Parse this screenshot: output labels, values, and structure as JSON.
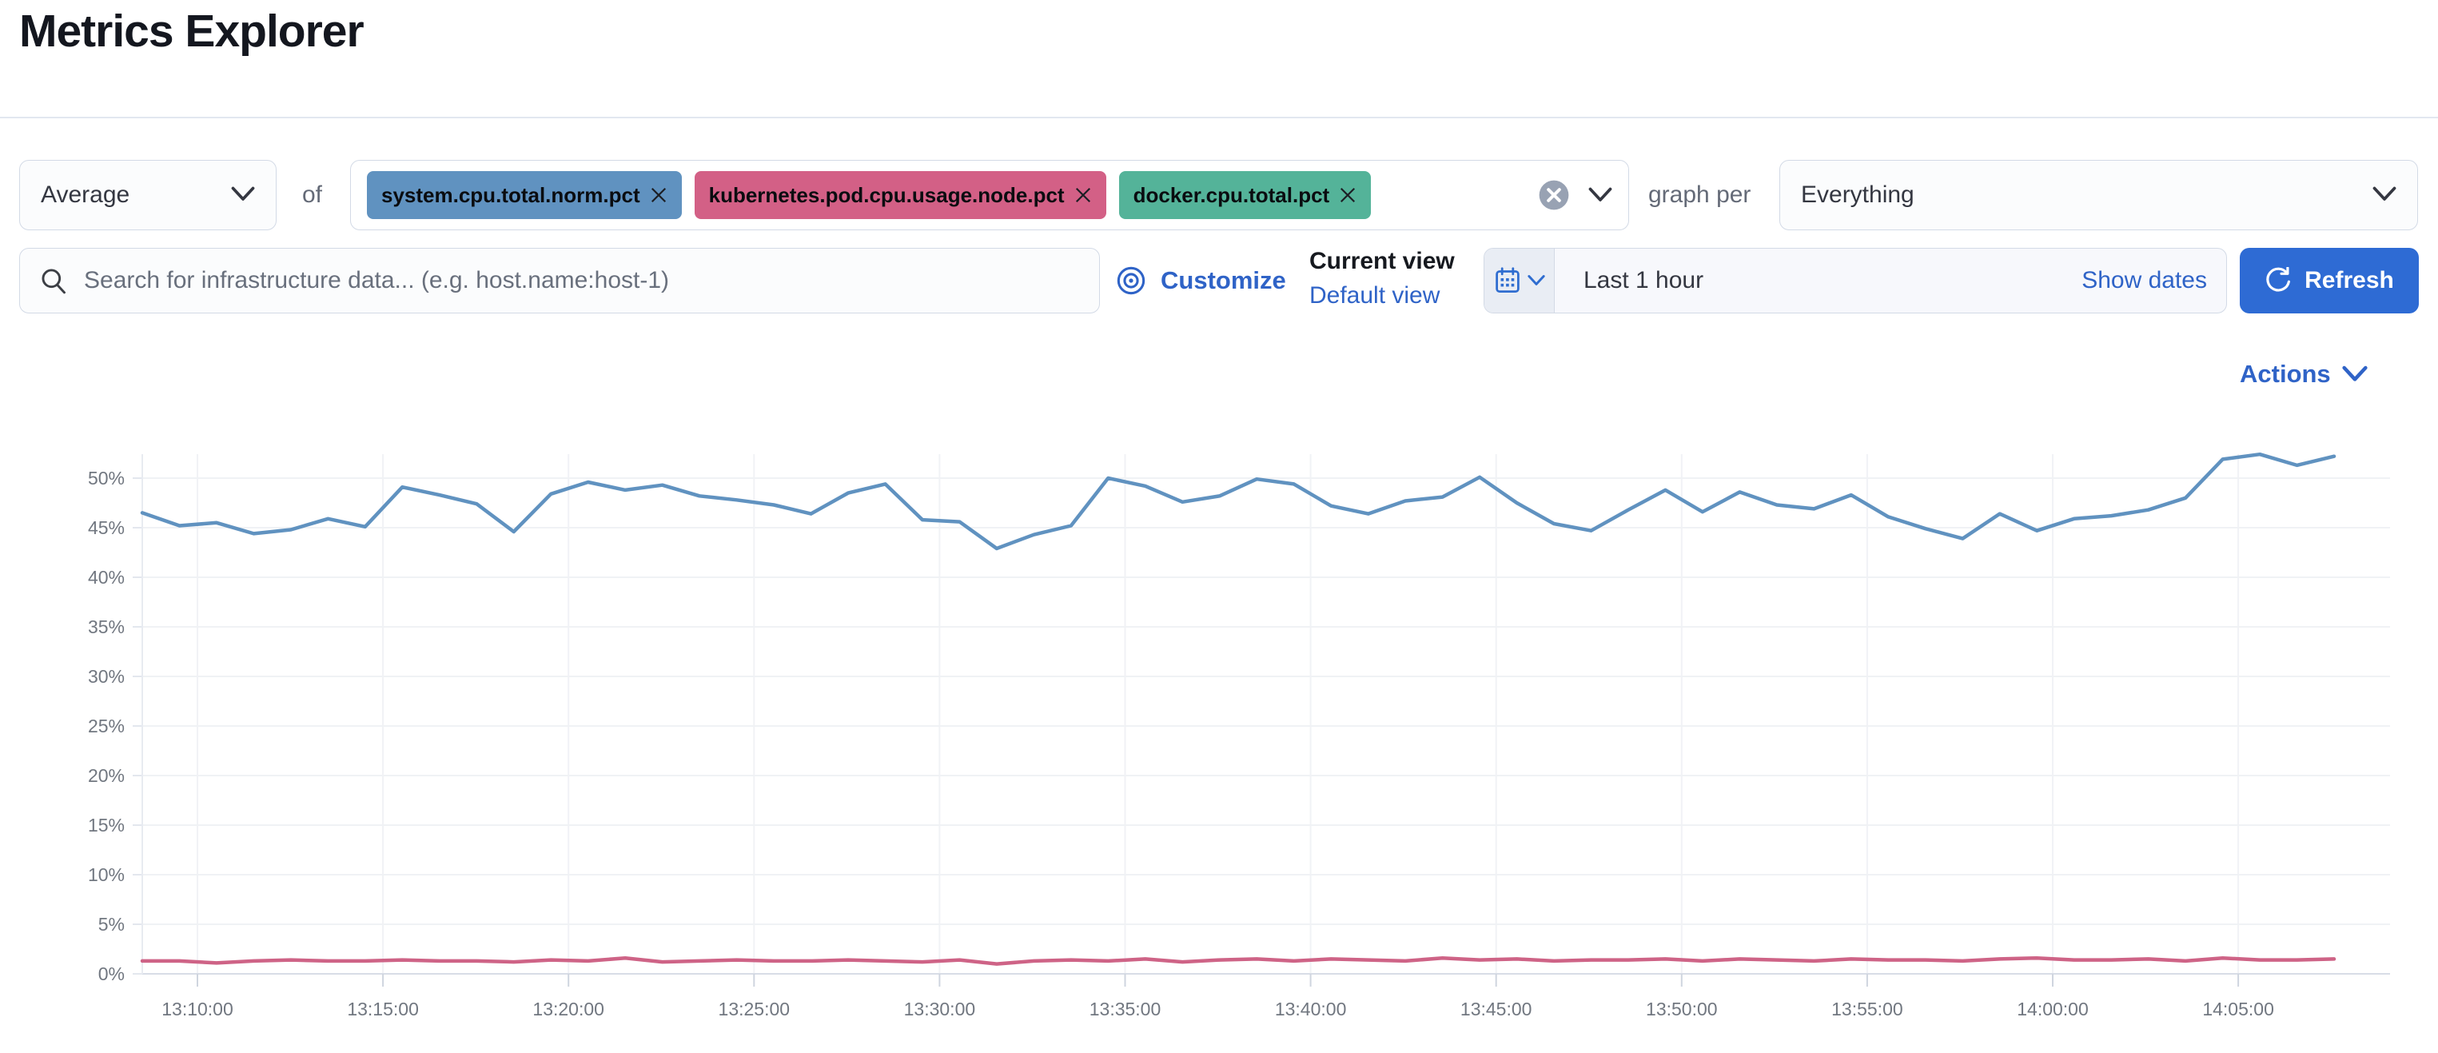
{
  "page": {
    "title": "Metrics Explorer"
  },
  "toolbar": {
    "aggregation": {
      "value": "Average"
    },
    "of_label": "of",
    "metrics": [
      {
        "label": "system.cpu.total.norm.pct",
        "color": "#6092C0"
      },
      {
        "label": "kubernetes.pod.cpu.usage.node.pct",
        "color": "#D36086"
      },
      {
        "label": "docker.cpu.total.pct",
        "color": "#54B399"
      }
    ],
    "graph_per_label": "graph per",
    "group_by": {
      "value": "Everything"
    }
  },
  "search": {
    "placeholder": "Search for infrastructure data... (e.g. host.name:host-1)"
  },
  "view_controls": {
    "customize_label": "Customize",
    "current_view_label": "Current view",
    "view_name": "Default view"
  },
  "time_picker": {
    "value": "Last 1 hour",
    "show_dates_label": "Show dates",
    "refresh_label": "Refresh"
  },
  "chart_actions": {
    "label": "Actions"
  },
  "colors": {
    "link_blue": "#2f63c7",
    "primary_button": "#2e6bd4",
    "series_blue": "#6092C0",
    "series_pink": "#CE6386"
  },
  "chart_data": {
    "type": "line",
    "title": "",
    "xlabel": "",
    "ylabel": "",
    "unit": "%",
    "grid": true,
    "legend": "none",
    "ylim": [
      0,
      53
    ],
    "y_ticks": [
      "0%",
      "5%",
      "10%",
      "15%",
      "20%",
      "25%",
      "30%",
      "35%",
      "40%",
      "45%",
      "50%"
    ],
    "x_ticks": [
      "13:10:00",
      "13:15:00",
      "13:20:00",
      "13:25:00",
      "13:30:00",
      "13:35:00",
      "13:40:00",
      "13:45:00",
      "13:50:00",
      "13:55:00",
      "14:00:00",
      "14:05:00"
    ],
    "x_start": "13:08:30",
    "x_interval_seconds": 60,
    "series": [
      {
        "name": "system.cpu.total.norm.pct (Average)",
        "color": "#6092C0",
        "values": [
          46.5,
          45.2,
          45.5,
          44.4,
          44.8,
          45.9,
          45.1,
          49.1,
          48.3,
          47.4,
          44.6,
          48.4,
          49.6,
          48.8,
          49.3,
          48.2,
          47.8,
          47.3,
          46.4,
          48.5,
          49.4,
          45.8,
          45.6,
          42.9,
          44.3,
          45.2,
          50.0,
          49.2,
          47.6,
          48.2,
          49.9,
          49.4,
          47.2,
          46.4,
          47.7,
          48.1,
          50.1,
          47.5,
          45.4,
          44.7,
          46.8,
          48.8,
          46.6,
          48.6,
          47.3,
          46.9,
          48.3,
          46.1,
          44.9,
          43.9,
          46.4,
          44.7,
          45.9,
          46.2,
          46.8,
          48.0,
          51.9,
          52.4,
          51.3,
          52.2
        ]
      },
      {
        "name": "kubernetes.pod.cpu.usage.node.pct (Average)",
        "color": "#CE6386",
        "values": [
          1.3,
          1.3,
          1.1,
          1.3,
          1.4,
          1.3,
          1.3,
          1.4,
          1.3,
          1.3,
          1.2,
          1.4,
          1.3,
          1.6,
          1.2,
          1.3,
          1.4,
          1.3,
          1.3,
          1.4,
          1.3,
          1.2,
          1.4,
          1.0,
          1.3,
          1.4,
          1.3,
          1.5,
          1.2,
          1.4,
          1.5,
          1.3,
          1.5,
          1.4,
          1.3,
          1.6,
          1.4,
          1.5,
          1.3,
          1.4,
          1.4,
          1.5,
          1.3,
          1.5,
          1.4,
          1.3,
          1.5,
          1.4,
          1.4,
          1.3,
          1.5,
          1.6,
          1.4,
          1.4,
          1.5,
          1.3,
          1.6,
          1.4,
          1.4,
          1.5
        ]
      }
    ]
  }
}
